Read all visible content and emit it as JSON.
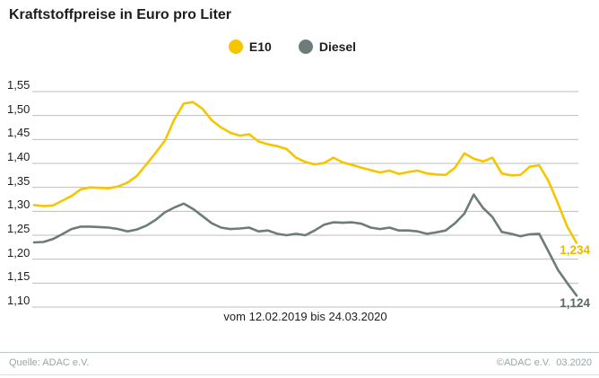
{
  "title": "Kraftstoffpreise in Euro pro Liter",
  "chart_data": {
    "type": "line",
    "title": "Kraftstoffpreise in Euro pro Liter",
    "x_range_label": "vom 12.02.2019 bis 24.03.2020",
    "x_start": "12.02.2019",
    "x_end": "24.03.2020",
    "x_unit": "weeks",
    "ylabel": "Euro pro Liter",
    "ylim": [
      1.1,
      1.55
    ],
    "ytick_values": [
      1.55,
      1.5,
      1.45,
      1.4,
      1.35,
      1.3,
      1.25,
      1.2,
      1.15,
      1.1
    ],
    "ytick_labels": [
      "1,55",
      "1,50",
      "1,45",
      "1,40",
      "1,35",
      "1,30",
      "1,25",
      "1,20",
      "1,15",
      "1,10"
    ],
    "grid": "horizontal",
    "grid_color": "#bdbdbd",
    "legend_position": "top-center",
    "series": [
      {
        "name": "E10",
        "color": "#f6c500",
        "end_label": "1,234",
        "end_label_color": "#eab800",
        "end_value": 1.234,
        "values": [
          1.313,
          1.311,
          1.312,
          1.322,
          1.332,
          1.346,
          1.35,
          1.349,
          1.348,
          1.352,
          1.36,
          1.374,
          1.398,
          1.422,
          1.448,
          1.492,
          1.525,
          1.528,
          1.514,
          1.49,
          1.475,
          1.464,
          1.458,
          1.461,
          1.446,
          1.44,
          1.436,
          1.43,
          1.412,
          1.403,
          1.398,
          1.401,
          1.412,
          1.402,
          1.397,
          1.391,
          1.386,
          1.381,
          1.385,
          1.378,
          1.382,
          1.385,
          1.379,
          1.377,
          1.376,
          1.391,
          1.421,
          1.41,
          1.404,
          1.412,
          1.379,
          1.375,
          1.376,
          1.393,
          1.396,
          1.363,
          1.317,
          1.268,
          1.234
        ]
      },
      {
        "name": "Diesel",
        "color": "#6e7b7b",
        "end_label": "1,124",
        "end_label_color": "#5a6769",
        "end_value": 1.124,
        "values": [
          1.235,
          1.236,
          1.242,
          1.252,
          1.263,
          1.268,
          1.268,
          1.267,
          1.266,
          1.263,
          1.258,
          1.262,
          1.27,
          1.282,
          1.298,
          1.308,
          1.316,
          1.305,
          1.29,
          1.275,
          1.266,
          1.263,
          1.264,
          1.266,
          1.258,
          1.26,
          1.253,
          1.25,
          1.253,
          1.25,
          1.26,
          1.272,
          1.277,
          1.276,
          1.277,
          1.274,
          1.266,
          1.263,
          1.266,
          1.26,
          1.26,
          1.258,
          1.253,
          1.256,
          1.26,
          1.275,
          1.295,
          1.335,
          1.307,
          1.288,
          1.257,
          1.253,
          1.248,
          1.252,
          1.253,
          1.216,
          1.178,
          1.15,
          1.124
        ]
      }
    ]
  },
  "footer": {
    "source": "Quelle: ADAC e.V.",
    "copyright": "©ADAC e.V.  03.2020"
  }
}
